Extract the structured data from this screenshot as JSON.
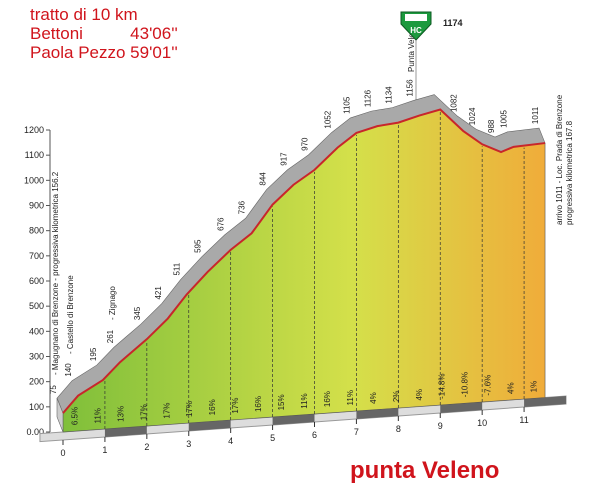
{
  "chart_data": {
    "type": "area",
    "notes": [
      "tratto di 10 km",
      "Bettoni          43'06''",
      "Paola Pezzo 59'01''"
    ],
    "title": "punta Veleno",
    "x": [
      0,
      0.36,
      0.95,
      1.36,
      2.0,
      2.5,
      2.95,
      3.45,
      4.0,
      4.5,
      5.0,
      5.5,
      6.0,
      6.55,
      7.0,
      7.5,
      8.0,
      8.5,
      9.0,
      9.55,
      10.0,
      10.45,
      10.75,
      11.5
    ],
    "values": [
      75,
      140,
      195,
      261,
      345,
      421,
      511,
      595,
      676,
      736,
      844,
      917,
      970,
      1052,
      1105,
      1126,
      1134,
      1156,
      1174,
      1082,
      1024,
      988,
      1005,
      1011
    ],
    "gradient_labels": [
      "6.5%",
      "11%",
      "13%",
      "17%",
      "17%",
      "17%",
      "16%",
      "17%",
      "16%",
      "15%",
      "11%",
      "16%",
      "11%",
      "4%",
      "2%",
      "4%",
      "-14.8%",
      "-10.8%",
      "-7.6%",
      "4%",
      "1%"
    ],
    "annotations": [
      "- Magugnano di Brenzone - progressiva kilometrica 156.2",
      "- Castello di Brenzone",
      "- Zignago",
      "Punta Veleno",
      "arrivo 1011 - Loc. Prada di Brenzone",
      "progressiva kilometrica 167.8"
    ],
    "summit": {
      "label": "HC"
    },
    "xlim": [
      0,
      12
    ],
    "xticks": [
      0,
      1,
      2,
      3,
      4,
      5,
      6,
      7,
      8,
      9,
      10,
      11
    ],
    "ylim": [
      0,
      1200
    ],
    "yticks": [
      {
        "value": 0,
        "label": "0.00"
      },
      100,
      200,
      300,
      400,
      500,
      600,
      700,
      800,
      900,
      1000,
      1100,
      1200
    ],
    "colors": [
      "#7fbf3a",
      "#d4e04a",
      "#f0ac3a"
    ],
    "line_color": "#c8262b",
    "top_color": "#a9a9a9"
  }
}
